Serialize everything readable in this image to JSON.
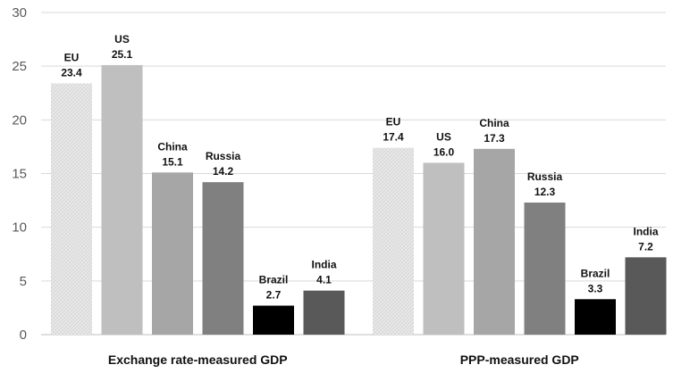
{
  "chart_data": {
    "type": "bar",
    "groups": [
      "Exchange rate-measured GDP",
      "PPP-measured GDP"
    ],
    "categories": [
      "EU",
      "US",
      "China",
      "Russia",
      "Brazil",
      "India"
    ],
    "series": [
      {
        "group": "Exchange rate-measured GDP",
        "values": [
          23.4,
          25.1,
          15.1,
          14.2,
          2.7,
          4.1
        ],
        "labels": [
          "23.4",
          "25.1",
          "15.1",
          "14.2",
          "2.7",
          "4.1"
        ]
      },
      {
        "group": "PPP-measured GDP",
        "values": [
          17.4,
          16.0,
          17.3,
          12.3,
          3.3,
          7.2
        ],
        "labels": [
          "17.4",
          "16.0",
          "17.3",
          "12.3",
          "3.3",
          "7.2"
        ]
      }
    ],
    "ylim": [
      0,
      30
    ],
    "yticks": [
      "0",
      "5",
      "10",
      "15",
      "20",
      "25",
      "30"
    ],
    "grid": true,
    "legend": "none",
    "bar_colors": {
      "EU": "pattern-light-gray",
      "US": "#bfbfbf",
      "China": "#a6a6a6",
      "Russia": "#808080",
      "Brazil": "#000000",
      "India": "#595959"
    },
    "colors": {
      "background": "#ffffff",
      "grid": "#d9d9d9",
      "axis": "#bfbfbf",
      "tick_text": "#595959",
      "label_text": "#111111",
      "eu_pattern_fill": "#ededed",
      "eu_pattern_lines": "#d2d2d2"
    }
  }
}
